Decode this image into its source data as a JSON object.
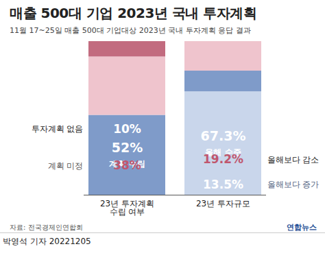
{
  "chart_data": {
    "type": "bar",
    "title": "매출 500대 기업 2023년 국내 투자계획",
    "subtitle": "11월 17~25일 매출 500대 기업대상 2023년 국내 투자계획 응답 결과",
    "categories": [
      "23년 투자계획\n수립 여부",
      "23년 투자규모"
    ],
    "series": [
      {
        "name": "계획 수립",
        "color": "#7f9bc9",
        "values": [
          52,
          null
        ],
        "value_labels": [
          "52%",
          null
        ]
      },
      {
        "name": "계획 미정",
        "color": "#efc4cd",
        "values": [
          38,
          null
        ],
        "value_labels": [
          "38%",
          null
        ]
      },
      {
        "name": "투자계획 없음",
        "color": "#c26b7f",
        "values": [
          10,
          null
        ],
        "value_labels": [
          "10%",
          null
        ]
      },
      {
        "name": "올해 수준",
        "color": "#c9d6eb",
        "values": [
          null,
          67.3
        ],
        "value_labels": [
          null,
          "67.3%"
        ]
      },
      {
        "name": "올해보다 증가",
        "color": "#7f9bc9",
        "values": [
          null,
          13.5
        ],
        "value_labels": [
          null,
          "13.5%"
        ]
      },
      {
        "name": "올해보다 감소",
        "color": "#efc4cd",
        "values": [
          null,
          19.2
        ],
        "value_labels": [
          null,
          "19.2%"
        ]
      }
    ],
    "ylim": [
      0,
      100
    ],
    "stacked": true,
    "data_labels": true,
    "tick_labels": "x",
    "source": "자료: 전국경제인연합회",
    "logo": "연합뉴스",
    "byline": "박영석 기자 20221205"
  }
}
